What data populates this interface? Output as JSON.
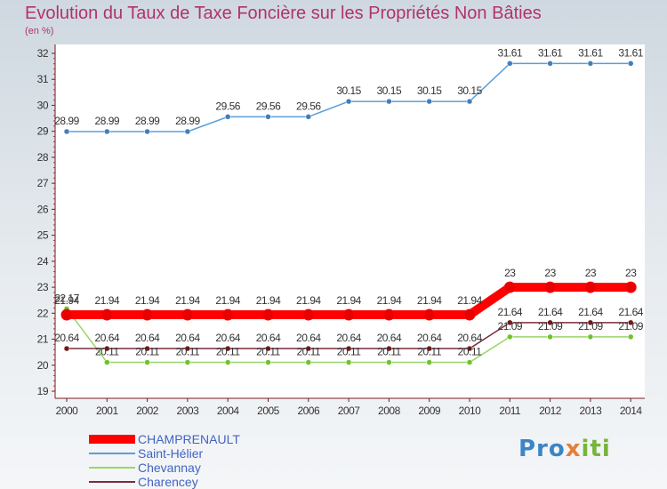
{
  "title": "Evolution du Taux de Taxe Foncière sur les Propriétés Non Bâties",
  "unit_label": "(en %)",
  "logo": {
    "part1": "Pro",
    "part2": "x",
    "part3": "iti"
  },
  "chart_data": {
    "type": "line",
    "title": "Evolution du Taux de Taxe Foncière sur les Propriétés Non Bâties",
    "ylabel": "(en %)",
    "xlabel": "",
    "ylim": [
      19,
      32
    ],
    "y_ticks": [
      19,
      20,
      21,
      22,
      23,
      24,
      25,
      26,
      27,
      28,
      29,
      30,
      31,
      32
    ],
    "grid": false,
    "legend_position": "bottom-left",
    "x": [
      "2000",
      "2001",
      "2002",
      "2003",
      "2004",
      "2005",
      "2006",
      "2007",
      "2008",
      "2009",
      "2010",
      "2011",
      "2012",
      "2013",
      "2014"
    ],
    "series": [
      {
        "name": "Saint-Hélier",
        "color": "#5b9fd6",
        "marker": "#3f7fbd",
        "values": [
          28.99,
          28.99,
          28.99,
          28.99,
          29.56,
          29.56,
          29.56,
          30.15,
          30.15,
          30.15,
          30.15,
          31.61,
          31.61,
          31.61,
          31.61
        ],
        "labels": [
          "28.99",
          "28.99",
          "28.99",
          "28.99",
          "29.56",
          "29.56",
          "29.56",
          "30.15",
          "30.15",
          "30.15",
          "30.15",
          "31.61",
          "31.61",
          "31.61",
          "31.61"
        ]
      },
      {
        "name": "Chevannay",
        "color": "#9ad56a",
        "marker": "#72c22a",
        "values": [
          22.17,
          20.11,
          20.11,
          20.11,
          20.11,
          20.11,
          20.11,
          20.11,
          20.11,
          20.11,
          20.11,
          21.09,
          21.09,
          21.09,
          21.09
        ],
        "labels": [
          "22.17",
          "20.11",
          "20.11",
          "20.11",
          "20.11",
          "20.11",
          "20.11",
          "20.11",
          "20.11",
          "20.11",
          "20.11",
          "21.09",
          "21.09",
          "21.09",
          "21.09"
        ]
      },
      {
        "name": "Charencey",
        "color": "#7a2d3d",
        "marker": "#6e1a1a",
        "values": [
          20.64,
          20.64,
          20.64,
          20.64,
          20.64,
          20.64,
          20.64,
          20.64,
          20.64,
          20.64,
          20.64,
          21.64,
          21.64,
          21.64,
          21.64
        ],
        "labels": [
          "20.64",
          "20.64",
          "20.64",
          "20.64",
          "20.64",
          "20.64",
          "20.64",
          "20.64",
          "20.64",
          "20.64",
          "20.64",
          "21.64",
          "21.64",
          "21.64",
          "21.64"
        ]
      },
      {
        "name": "CHAMPRENAULT",
        "color": "#ff0000",
        "marker": "#e60000",
        "values": [
          21.94,
          21.94,
          21.94,
          21.94,
          21.94,
          21.94,
          21.94,
          21.94,
          21.94,
          21.94,
          21.94,
          23,
          23,
          23,
          23
        ],
        "labels": [
          "21.94",
          "21.94",
          "21.94",
          "21.94",
          "21.94",
          "21.94",
          "21.94",
          "21.94",
          "21.94",
          "21.94",
          "21.94",
          "23",
          "23",
          "23",
          "23"
        ]
      }
    ],
    "legend": [
      {
        "name": "CHAMPRENAULT",
        "color": "#ff0000"
      },
      {
        "name": "Saint-Hélier",
        "color": "#5b9fd6"
      },
      {
        "name": "Chevannay",
        "color": "#9ad56a"
      },
      {
        "name": "Charencey",
        "color": "#7a2d3d"
      }
    ]
  }
}
